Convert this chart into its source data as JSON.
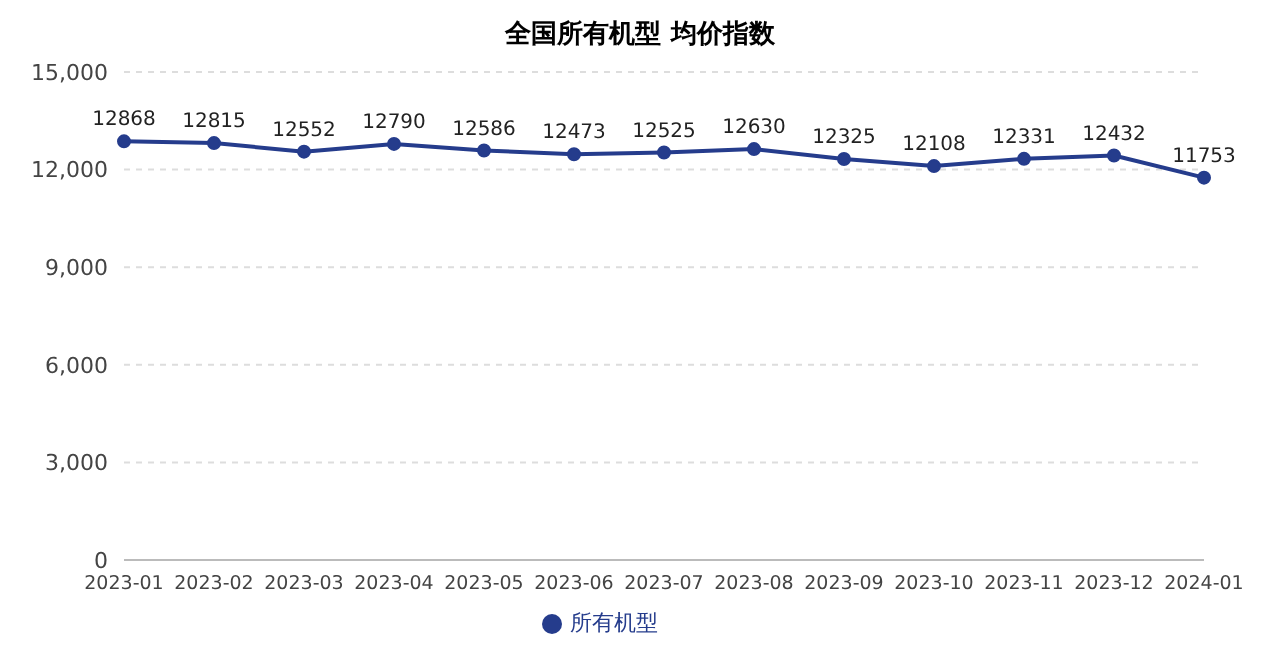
{
  "chart_data": {
    "type": "line",
    "title": "全国所有机型 均价指数",
    "categories": [
      "2023-01",
      "2023-02",
      "2023-03",
      "2023-04",
      "2023-05",
      "2023-06",
      "2023-07",
      "2023-08",
      "2023-09",
      "2023-10",
      "2023-11",
      "2023-12",
      "2024-01"
    ],
    "series": [
      {
        "name": "所有机型",
        "color": "#253c8c",
        "values": [
          12868,
          12815,
          12552,
          12790,
          12586,
          12473,
          12525,
          12630,
          12325,
          12108,
          12331,
          12432,
          11753
        ]
      }
    ],
    "ylim": [
      0,
      15000
    ],
    "yticks": [
      {
        "value": 0,
        "label": "0"
      },
      {
        "value": 3000,
        "label": "3,000"
      },
      {
        "value": 6000,
        "label": "6,000"
      },
      {
        "value": 9000,
        "label": "9,000"
      },
      {
        "value": 12000,
        "label": "12,000"
      },
      {
        "value": 15000,
        "label": "15,000"
      }
    ],
    "grid": "y",
    "legend": "bottom",
    "marker": "circle",
    "line_style": "solid",
    "data_labels": true
  }
}
